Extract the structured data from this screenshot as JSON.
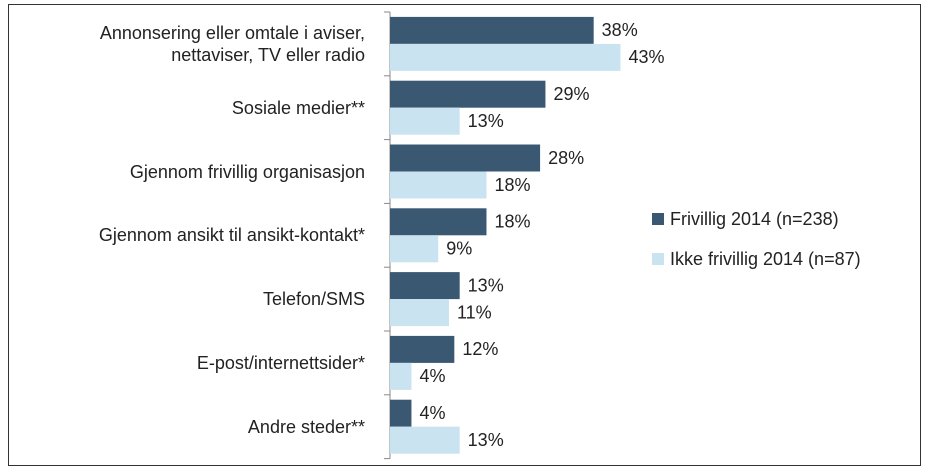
{
  "chart_data": {
    "type": "bar",
    "orientation": "horizontal",
    "categories": [
      "Annonsering eller omtale i aviser, nettaviser, TV eller radio",
      "Sosiale medier**",
      "Gjennom frivillig organisasjon",
      "Gjennom ansikt til ansikt-kontakt*",
      "Telefon/SMS",
      "E-post/internettsider*",
      "Andre steder**"
    ],
    "series": [
      {
        "name": "Frivillig 2014 (n=238)",
        "color": "#3b5873",
        "values": [
          38,
          29,
          28,
          18,
          13,
          12,
          4
        ],
        "value_labels": [
          "38%",
          "29%",
          "28%",
          "18%",
          "13%",
          "12%",
          "4%"
        ]
      },
      {
        "name": "Ikke frivillig 2014 (n=87)",
        "color": "#c9e3f0",
        "values": [
          43,
          13,
          18,
          9,
          11,
          4,
          13
        ],
        "value_labels": [
          "43%",
          "13%",
          "18%",
          "9%",
          "11%",
          "4%",
          "13%"
        ]
      }
    ],
    "legend": "right"
  }
}
